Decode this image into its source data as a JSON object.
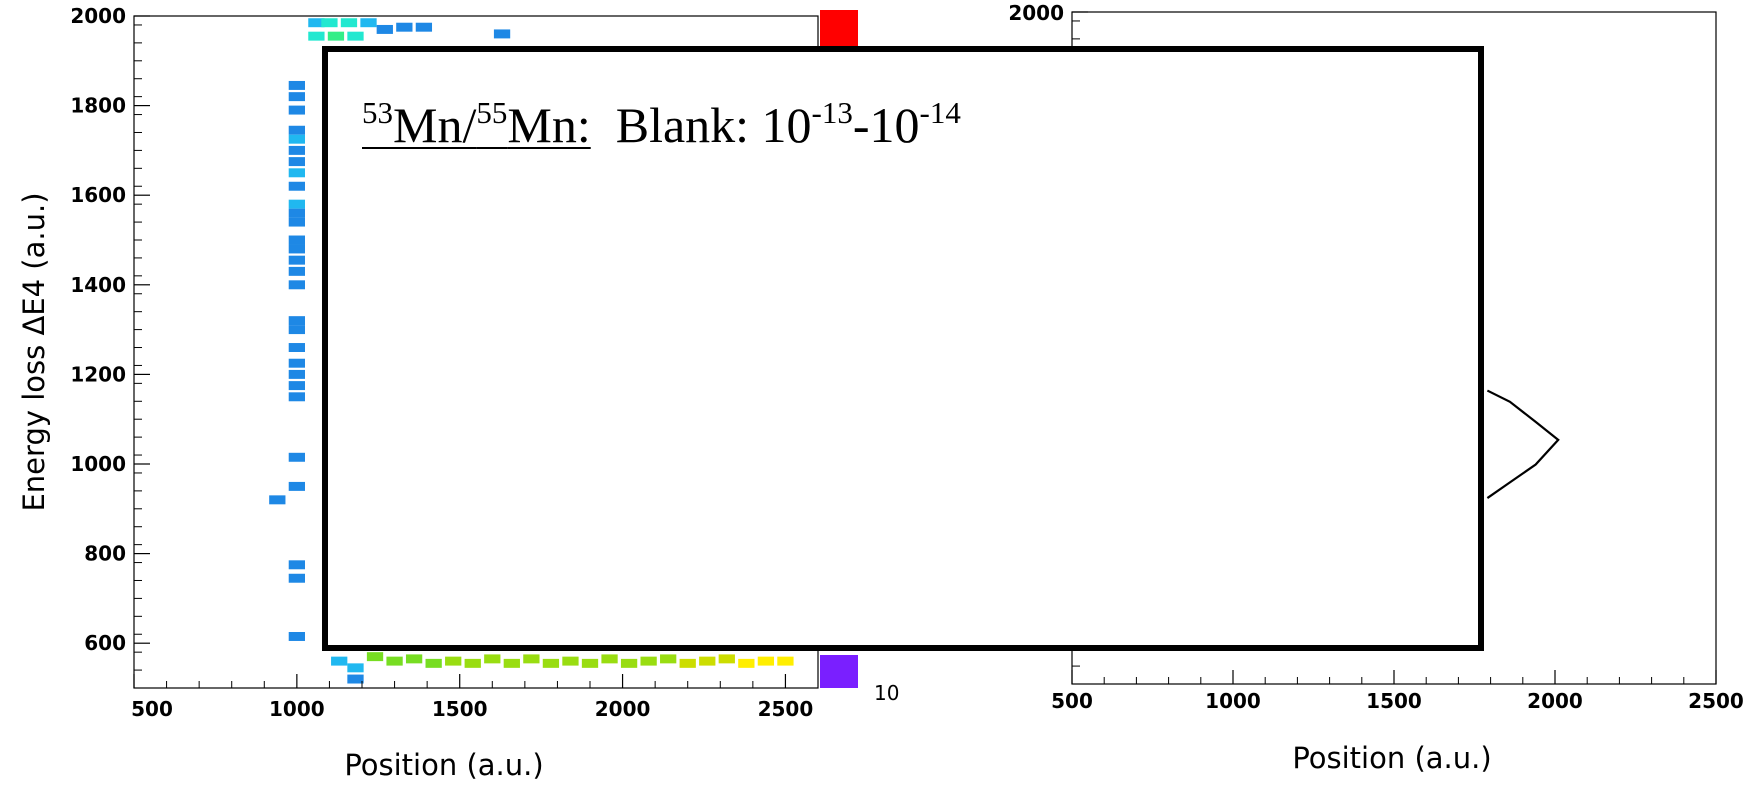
{
  "chart_data": [
    {
      "type": "heatmap",
      "xlabel": "Position (a.u.)",
      "ylabel": "Energy loss ΔE4 (a.u.)",
      "xlim": [
        500,
        2600
      ],
      "ylim": [
        500,
        2000
      ],
      "x_ticks": [
        "500",
        "1000",
        "1500",
        "2000",
        "2500"
      ],
      "y_ticks": [
        "600",
        "800",
        "1000",
        "1200",
        "1400",
        "1600",
        "1800",
        "2000"
      ],
      "colorbar_tick": "10",
      "colors": {
        "low": "#1e88e5",
        "mid": "#22e8b0",
        "green": "#66dd22",
        "high": "#ffee00",
        "max": "#ff0000",
        "min": "#7a1fff"
      },
      "cells": [
        {
          "x": 1060,
          "y": 1985,
          "z": 2
        },
        {
          "x": 1100,
          "y": 1985,
          "z": 3
        },
        {
          "x": 1160,
          "y": 1985,
          "z": 3
        },
        {
          "x": 1220,
          "y": 1985,
          "z": 2
        },
        {
          "x": 1270,
          "y": 1970,
          "z": 1
        },
        {
          "x": 1330,
          "y": 1975,
          "z": 1
        },
        {
          "x": 1390,
          "y": 1975,
          "z": 1
        },
        {
          "x": 1630,
          "y": 1960,
          "z": 1
        },
        {
          "x": 1060,
          "y": 1955,
          "z": 3
        },
        {
          "x": 1120,
          "y": 1955,
          "z": 4
        },
        {
          "x": 1180,
          "y": 1955,
          "z": 3
        },
        {
          "x": 1000,
          "y": 1845,
          "z": 1
        },
        {
          "x": 1000,
          "y": 1820,
          "z": 1
        },
        {
          "x": 1000,
          "y": 1790,
          "z": 1
        },
        {
          "x": 1000,
          "y": 1745,
          "z": 1
        },
        {
          "x": 1000,
          "y": 1725,
          "z": 2
        },
        {
          "x": 1000,
          "y": 1700,
          "z": 1
        },
        {
          "x": 1000,
          "y": 1675,
          "z": 1
        },
        {
          "x": 1000,
          "y": 1650,
          "z": 2
        },
        {
          "x": 1000,
          "y": 1620,
          "z": 1
        },
        {
          "x": 1000,
          "y": 1580,
          "z": 2
        },
        {
          "x": 1000,
          "y": 1560,
          "z": 1
        },
        {
          "x": 1000,
          "y": 1540,
          "z": 1
        },
        {
          "x": 1000,
          "y": 1500,
          "z": 1
        },
        {
          "x": 1000,
          "y": 1480,
          "z": 1
        },
        {
          "x": 1000,
          "y": 1455,
          "z": 1
        },
        {
          "x": 1000,
          "y": 1430,
          "z": 1
        },
        {
          "x": 1000,
          "y": 1400,
          "z": 1
        },
        {
          "x": 1000,
          "y": 1320,
          "z": 1
        },
        {
          "x": 1000,
          "y": 1300,
          "z": 1
        },
        {
          "x": 1000,
          "y": 1260,
          "z": 1
        },
        {
          "x": 1000,
          "y": 1225,
          "z": 1
        },
        {
          "x": 1000,
          "y": 1200,
          "z": 1
        },
        {
          "x": 1000,
          "y": 1175,
          "z": 1
        },
        {
          "x": 1000,
          "y": 1150,
          "z": 1
        },
        {
          "x": 1000,
          "y": 1015,
          "z": 1
        },
        {
          "x": 1000,
          "y": 950,
          "z": 1
        },
        {
          "x": 940,
          "y": 920,
          "z": 1
        },
        {
          "x": 1000,
          "y": 775,
          "z": 1
        },
        {
          "x": 1000,
          "y": 745,
          "z": 1
        },
        {
          "x": 1000,
          "y": 615,
          "z": 1
        },
        {
          "x": 1130,
          "y": 560,
          "z": 2
        },
        {
          "x": 1180,
          "y": 545,
          "z": 2
        },
        {
          "x": 1180,
          "y": 520,
          "z": 1
        },
        {
          "x": 1240,
          "y": 570,
          "z": 5
        },
        {
          "x": 1300,
          "y": 560,
          "z": 5
        },
        {
          "x": 1360,
          "y": 565,
          "z": 5
        },
        {
          "x": 1420,
          "y": 555,
          "z": 5
        },
        {
          "x": 1480,
          "y": 560,
          "z": 6
        },
        {
          "x": 1540,
          "y": 555,
          "z": 6
        },
        {
          "x": 1600,
          "y": 565,
          "z": 6
        },
        {
          "x": 1660,
          "y": 555,
          "z": 6
        },
        {
          "x": 1720,
          "y": 565,
          "z": 6
        },
        {
          "x": 1780,
          "y": 555,
          "z": 6
        },
        {
          "x": 1840,
          "y": 560,
          "z": 6
        },
        {
          "x": 1900,
          "y": 555,
          "z": 6
        },
        {
          "x": 1960,
          "y": 565,
          "z": 6
        },
        {
          "x": 2020,
          "y": 555,
          "z": 6
        },
        {
          "x": 2080,
          "y": 560,
          "z": 6
        },
        {
          "x": 2140,
          "y": 565,
          "z": 6
        },
        {
          "x": 2200,
          "y": 555,
          "z": 7
        },
        {
          "x": 2260,
          "y": 560,
          "z": 7
        },
        {
          "x": 2320,
          "y": 565,
          "z": 7
        },
        {
          "x": 2380,
          "y": 555,
          "z": 8
        },
        {
          "x": 2440,
          "y": 560,
          "z": 8
        },
        {
          "x": 2500,
          "y": 560,
          "z": 8
        }
      ]
    },
    {
      "type": "line",
      "xlabel": "Position (a.u.)",
      "ylabel": "",
      "xlim": [
        500,
        2500
      ],
      "ylim": [
        500,
        2000
      ],
      "x_ticks": [
        "500",
        "1000",
        "1500",
        "2000",
        "2500"
      ],
      "y_ticks": [
        "2000"
      ],
      "series": [
        {
          "x": [
            1790,
            1860,
            1940,
            2010,
            1940,
            1860,
            1790
          ],
          "y": [
            1155,
            1130,
            1085,
            1045,
            990,
            950,
            915
          ]
        }
      ]
    }
  ],
  "annotation": {
    "mass1": "53",
    "elem1": "Mn/",
    "mass2": "55",
    "elem2": "Mn:",
    "label": "Blank: 10",
    "exp1": "-13",
    "dash": "-10",
    "exp2": "-14"
  }
}
